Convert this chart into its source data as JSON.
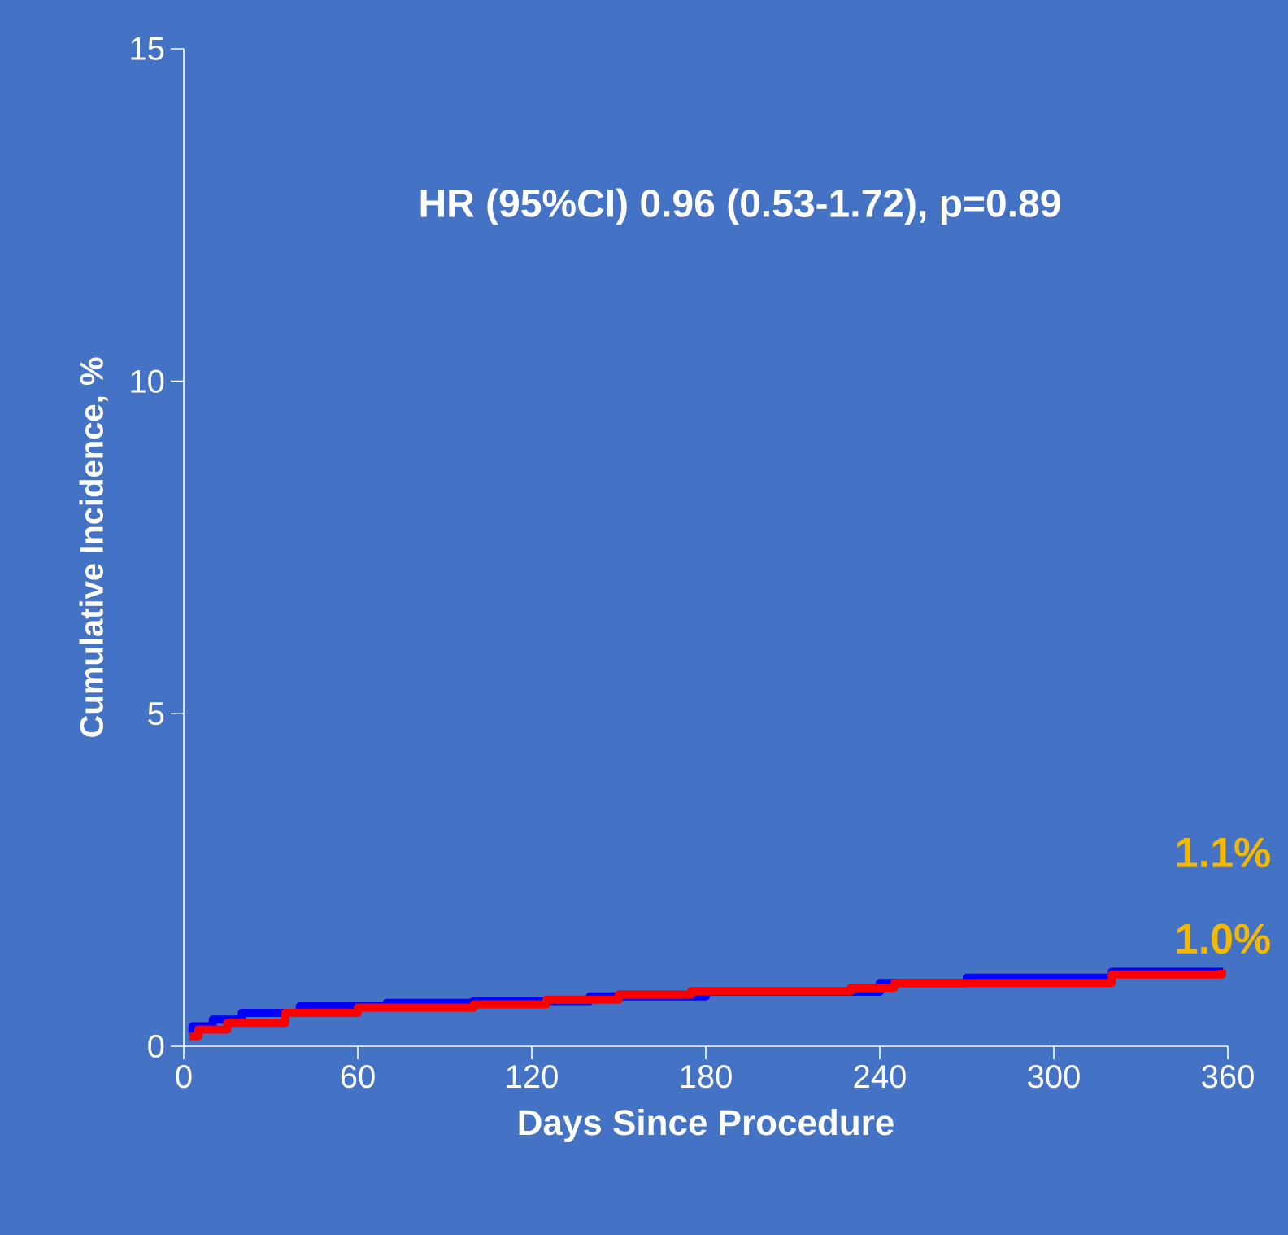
{
  "chart_data": {
    "type": "step",
    "xlabel": "Days Since Procedure",
    "ylabel": "Cumulative Incidence, %",
    "xlim": [
      0,
      360
    ],
    "ylim": [
      0,
      15
    ],
    "xticks": [
      0,
      60,
      120,
      180,
      240,
      300,
      360
    ],
    "yticks": [
      0,
      5,
      10,
      15
    ],
    "series": [
      {
        "color": "#0000ff",
        "x": [
          2,
          3,
          10,
          20,
          40,
          70,
          100,
          140,
          180,
          240,
          270,
          320,
          357
        ],
        "values": [
          0.2,
          0.3,
          0.4,
          0.5,
          0.6,
          0.65,
          0.68,
          0.75,
          0.82,
          0.95,
          1.03,
          1.12,
          1.18
        ]
      },
      {
        "color": "#ff0000",
        "x": [
          2,
          5,
          15,
          35,
          60,
          100,
          125,
          150,
          175,
          230,
          245,
          320,
          358
        ],
        "values": [
          0.15,
          0.25,
          0.35,
          0.5,
          0.58,
          0.63,
          0.7,
          0.78,
          0.83,
          0.88,
          0.95,
          1.08,
          1.15
        ]
      }
    ],
    "annotations": [
      "HR (95%CI) 0.96 (0.53-1.72), p=0.89",
      "1.1%",
      "1.0%"
    ]
  }
}
